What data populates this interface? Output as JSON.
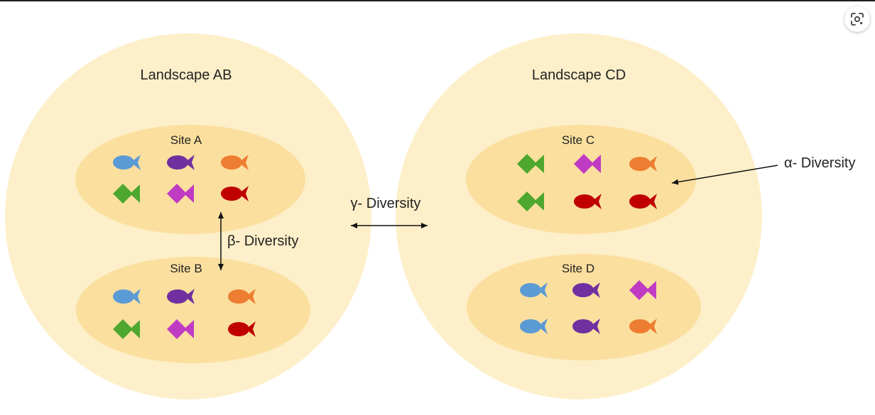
{
  "colors": {
    "landscape_fill": "#fdefc9",
    "site_fill": "#fbdf9e",
    "blue": "#5b9bd5",
    "purple": "#7030a0",
    "orange": "#ed7d31",
    "green": "#4ea72e",
    "magenta": "#c03bc4",
    "red": "#c00000",
    "arrow": "#111111"
  },
  "labels": {
    "landscape_ab": "Landscape AB",
    "landscape_cd": "Landscape CD",
    "site_a": "Site A",
    "site_b": "Site B",
    "site_c": "Site C",
    "site_d": "Site D",
    "alpha": "α- Diversity",
    "beta": "β- Diversity",
    "gamma": "γ- Diversity"
  },
  "sites": [
    {
      "id": "site-a",
      "rows": [
        [
          "blue",
          "purple",
          "orange"
        ],
        [
          "green",
          "magenta",
          "red"
        ]
      ]
    },
    {
      "id": "site-b",
      "rows": [
        [
          "blue",
          "purple",
          "orange"
        ],
        [
          "green",
          "magenta",
          "red"
        ]
      ]
    },
    {
      "id": "site-c",
      "rows": [
        [
          "green",
          "magenta",
          "orange"
        ],
        [
          "green",
          "red",
          "red"
        ]
      ]
    },
    {
      "id": "site-d",
      "rows": [
        [
          "blue",
          "purple",
          "magenta"
        ],
        [
          "blue",
          "purple",
          "orange"
        ]
      ]
    }
  ],
  "icons": {
    "lens": "google-lens-icon"
  }
}
